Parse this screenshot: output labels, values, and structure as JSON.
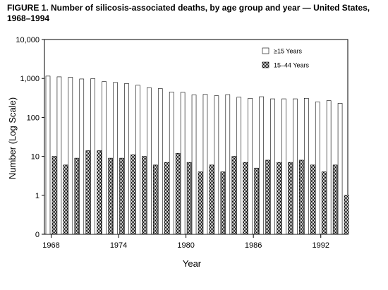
{
  "figure": {
    "title": "FIGURE 1. Number of silicosis-associated deaths, by age group and year — United States, 1968–1994"
  },
  "chart_data": {
    "type": "bar",
    "title": "FIGURE 1. Number of silicosis-associated deaths, by age group and year — United States, 1968–1994",
    "xlabel": "Year",
    "ylabel": "Number (Log Scale)",
    "yscale": "log",
    "ylim": [
      0,
      10000
    ],
    "y_tick_labels": [
      "0",
      "1",
      "10",
      "100",
      "1,000",
      "10,000"
    ],
    "x_tick_labels": [
      "1968",
      "1974",
      "1980",
      "1986",
      "1992"
    ],
    "legend_position": "top-right",
    "categories": [
      1968,
      1969,
      1970,
      1971,
      1972,
      1973,
      1974,
      1975,
      1976,
      1977,
      1978,
      1979,
      1980,
      1981,
      1982,
      1983,
      1984,
      1985,
      1986,
      1987,
      1988,
      1989,
      1990,
      1991,
      1992,
      1993,
      1994
    ],
    "series": [
      {
        "name": "≥15 Years",
        "fill": "white",
        "values": [
          1150,
          1100,
          1070,
          970,
          990,
          830,
          790,
          740,
          670,
          580,
          550,
          450,
          440,
          380,
          390,
          360,
          385,
          330,
          310,
          340,
          300,
          300,
          300,
          310,
          250,
          270,
          230
        ]
      },
      {
        "name": "15–44 Years",
        "fill": "dark-pattern",
        "values": [
          10,
          6,
          9,
          14,
          14,
          9,
          9,
          11,
          10,
          6,
          7,
          12,
          7,
          4,
          6,
          4,
          10,
          7,
          5,
          8,
          7,
          7,
          8,
          6,
          4,
          6,
          1
        ]
      }
    ]
  }
}
